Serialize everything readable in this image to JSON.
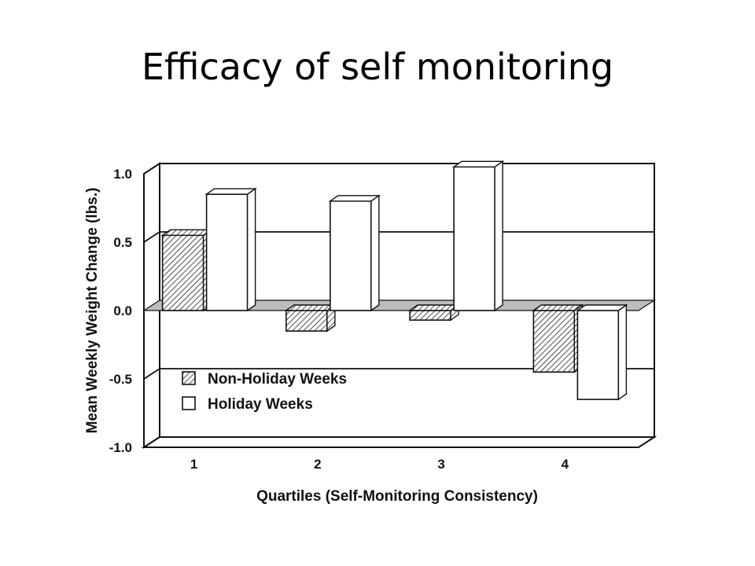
{
  "slide": {
    "title": "Efficacy of self monitoring"
  },
  "chart_data": {
    "type": "bar",
    "style": "3d",
    "categories": [
      "1",
      "2",
      "3",
      "4"
    ],
    "series": [
      {
        "name": "Non-Holiday Weeks",
        "values": [
          0.55,
          -0.15,
          -0.07,
          -0.45
        ],
        "fill": "hatched"
      },
      {
        "name": "Holiday Weeks",
        "values": [
          0.85,
          0.8,
          1.05,
          -0.65
        ],
        "fill": "white"
      }
    ],
    "xlabel": "Quartiles (Self-Monitoring Consistency)",
    "ylabel": "Mean Weekly Weight Change (lbs.)",
    "ylim": [
      -1.0,
      1.0
    ],
    "yticks": [
      "1.0",
      "0.5",
      "0.0",
      "-0.5",
      "-1.0"
    ],
    "grid": true,
    "legend_position": "bottom-left",
    "colors": {
      "ink": "#111111",
      "zero_plane": "#bdbdbd",
      "bar_white": "#ffffff"
    }
  }
}
